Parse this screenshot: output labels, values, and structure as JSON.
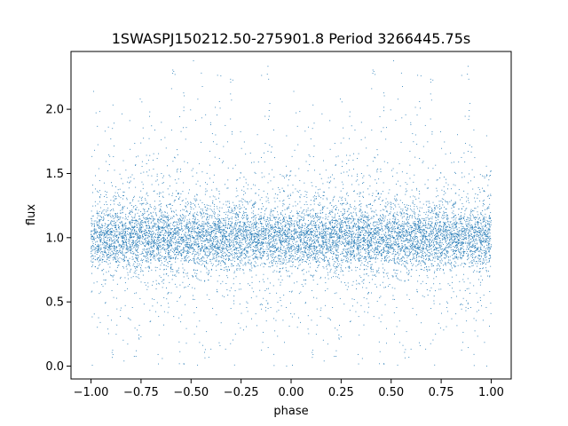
{
  "chart_data": {
    "type": "scatter",
    "title": "1SWASPJ150212.50-275901.8 Period 3266445.75s",
    "xlabel": "phase",
    "ylabel": "flux",
    "xlim": [
      -1.1,
      1.1
    ],
    "ylim": [
      -0.1,
      2.45
    ],
    "x_ticks": [
      -1.0,
      -0.75,
      -0.5,
      -0.25,
      0.0,
      0.25,
      0.5,
      0.75,
      1.0
    ],
    "x_tick_labels": [
      "−1.00",
      "−0.75",
      "−0.50",
      "−0.25",
      "0.00",
      "0.25",
      "0.50",
      "0.75",
      "1.00"
    ],
    "y_ticks": [
      0.0,
      0.5,
      1.0,
      1.5,
      2.0
    ],
    "y_tick_labels": [
      "0.0",
      "0.5",
      "1.0",
      "1.5",
      "2.0"
    ],
    "grid": false,
    "legend": "none",
    "marker_color": "#1f77b4",
    "series": [
      {
        "phase_range": [
          -1.0,
          1.0
        ],
        "symmetry": "mirrored (phase and phase-1 both shown)",
        "baseline_flux": 1.0,
        "core_band": [
          0.75,
          1.25
        ],
        "max_flux": 2.38,
        "min_flux": 0.0,
        "high_flux_streak_phases": [
          0.41,
          0.46,
          0.56,
          0.6,
          0.64,
          0.7,
          0.86,
          0.88
        ],
        "low_flux_streak_phases": [
          0.1,
          0.23,
          0.45,
          0.56,
          0.86,
          0.93
        ]
      }
    ]
  }
}
